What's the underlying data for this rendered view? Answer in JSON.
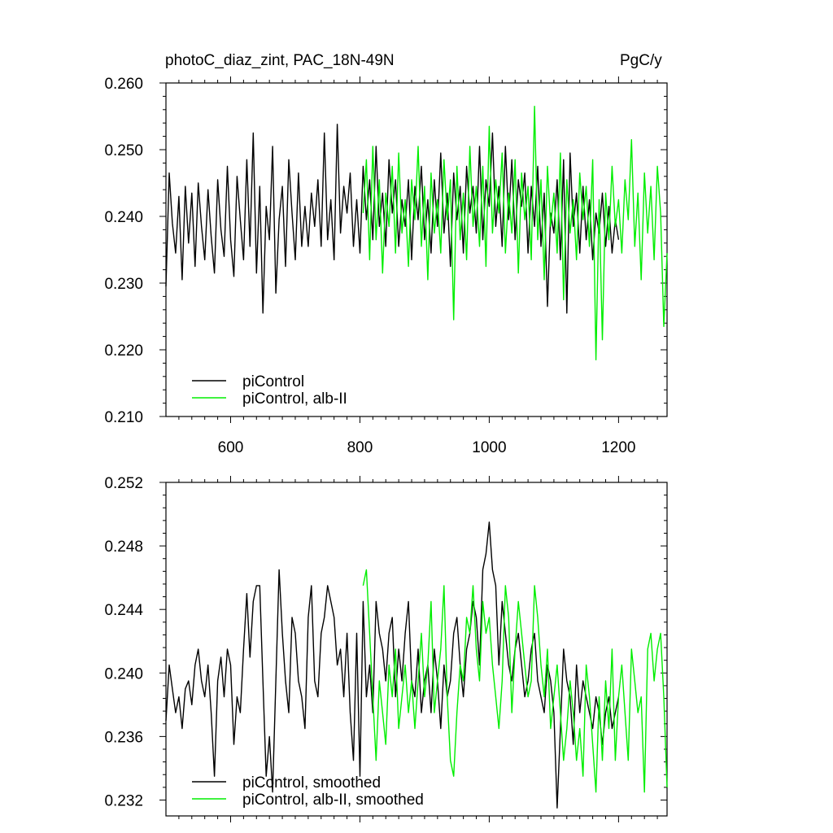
{
  "figure": {
    "title_left": "photoC_diaz_zint, PAC_18N-49N",
    "title_right": "PgC/y"
  },
  "chart_data": [
    {
      "type": "line",
      "xlim": [
        500,
        1275
      ],
      "ylim": [
        0.21,
        0.26
      ],
      "x_ticks": [
        600,
        800,
        1000,
        1200
      ],
      "x_tick_labels": [
        "600",
        "800",
        "1000",
        "1200"
      ],
      "y_ticks": [
        0.21,
        0.22,
        0.23,
        0.24,
        0.25,
        0.26
      ],
      "y_tick_labels": [
        "0.210",
        "0.220",
        "0.230",
        "0.240",
        "0.250",
        "0.260"
      ],
      "grid": false,
      "legend_position": "bottom-left",
      "series": [
        {
          "name": "piControl",
          "color": "#000000",
          "x": [
            500,
            505,
            510,
            515,
            520,
            525,
            530,
            535,
            540,
            545,
            550,
            555,
            560,
            565,
            570,
            575,
            580,
            585,
            590,
            595,
            600,
            605,
            610,
            615,
            620,
            625,
            630,
            635,
            640,
            645,
            650,
            655,
            660,
            665,
            670,
            675,
            680,
            685,
            690,
            695,
            700,
            705,
            710,
            715,
            720,
            725,
            730,
            735,
            740,
            745,
            750,
            755,
            760,
            765,
            770,
            775,
            780,
            785,
            790,
            795,
            800,
            805,
            810,
            815,
            820,
            825,
            830,
            835,
            840,
            845,
            850,
            855,
            860,
            865,
            870,
            875,
            880,
            885,
            890,
            895,
            900,
            905,
            910,
            915,
            920,
            925,
            930,
            935,
            940,
            945,
            950,
            955,
            960,
            965,
            970,
            975,
            980,
            985,
            990,
            995,
            1000,
            1005,
            1010,
            1015,
            1020,
            1025,
            1030,
            1035,
            1040,
            1045,
            1050,
            1055,
            1060,
            1065,
            1070,
            1075,
            1080,
            1085,
            1090,
            1095,
            1100,
            1105,
            1110,
            1115,
            1120,
            1125,
            1130,
            1135,
            1140,
            1145,
            1150,
            1155,
            1160,
            1165,
            1170,
            1175,
            1180,
            1185,
            1190,
            1195,
            1200
          ],
          "values": [
            0.2295,
            0.2465,
            0.239,
            0.2345,
            0.243,
            0.2305,
            0.2445,
            0.236,
            0.2435,
            0.2325,
            0.245,
            0.2385,
            0.2335,
            0.244,
            0.237,
            0.2315,
            0.2455,
            0.238,
            0.234,
            0.2475,
            0.2365,
            0.231,
            0.246,
            0.2395,
            0.2335,
            0.2485,
            0.2355,
            0.2525,
            0.2315,
            0.2445,
            0.2255,
            0.2415,
            0.2365,
            0.2505,
            0.2285,
            0.2395,
            0.2445,
            0.2325,
            0.2485,
            0.2405,
            0.2335,
            0.2465,
            0.2355,
            0.2415,
            0.2355,
            0.2435,
            0.2385,
            0.2455,
            0.2355,
            0.2525,
            0.2365,
            0.2425,
            0.2335,
            0.2538,
            0.2375,
            0.2445,
            0.2405,
            0.2465,
            0.2355,
            0.2425,
            0.2345,
            0.2475,
            0.2395,
            0.2455,
            0.2365,
            0.2505,
            0.2385,
            0.2435,
            0.2355,
            0.2485,
            0.2405,
            0.2455,
            0.2355,
            0.2425,
            0.2385,
            0.2455,
            0.2335,
            0.2445,
            0.2395,
            0.2475,
            0.2365,
            0.2425,
            0.2345,
            0.2455,
            0.2385,
            0.2495,
            0.2375,
            0.2435,
            0.2325,
            0.2465,
            0.2395,
            0.2445,
            0.2345,
            0.2475,
            0.2405,
            0.2445,
            0.2375,
            0.2505,
            0.2365,
            0.2455,
            0.2415,
            0.2525,
            0.2385,
            0.2445,
            0.2355,
            0.2505,
            0.2395,
            0.2485,
            0.2365,
            0.2455,
            0.2415,
            0.2465,
            0.2345,
            0.2445,
            0.2385,
            0.2475,
            0.2355,
            0.2435,
            0.2265,
            0.2405,
            0.2375,
            0.2455,
            0.2335,
            0.2485,
            0.2255,
            0.2495,
            0.2385,
            0.2435,
            0.2345,
            0.2445,
            0.2365,
            0.2425,
            0.2335,
            0.2405,
            0.2375,
            0.2435,
            0.2355,
            0.2415,
            0.2345,
            0.2395,
            0.2365
          ]
        },
        {
          "name": "piControl, alb-II",
          "color": "#00ee00",
          "x": [
            805,
            810,
            815,
            820,
            825,
            830,
            835,
            840,
            845,
            850,
            855,
            860,
            865,
            870,
            875,
            880,
            885,
            890,
            895,
            900,
            905,
            910,
            915,
            920,
            925,
            930,
            935,
            940,
            945,
            950,
            955,
            960,
            965,
            970,
            975,
            980,
            985,
            990,
            995,
            1000,
            1005,
            1010,
            1015,
            1020,
            1025,
            1030,
            1035,
            1040,
            1045,
            1050,
            1055,
            1060,
            1065,
            1070,
            1075,
            1080,
            1085,
            1090,
            1095,
            1100,
            1105,
            1110,
            1115,
            1120,
            1125,
            1130,
            1135,
            1140,
            1145,
            1150,
            1155,
            1160,
            1165,
            1170,
            1175,
            1180,
            1185,
            1190,
            1195,
            1200,
            1205,
            1210,
            1215,
            1220,
            1225,
            1230,
            1235,
            1240,
            1245,
            1250,
            1255,
            1260,
            1265,
            1270,
            1275
          ],
          "values": [
            0.2405,
            0.2485,
            0.2335,
            0.2505,
            0.2365,
            0.2455,
            0.2315,
            0.2435,
            0.2385,
            0.2475,
            0.2345,
            0.2495,
            0.2375,
            0.2425,
            0.2325,
            0.2455,
            0.2395,
            0.2505,
            0.2355,
            0.2445,
            0.2305,
            0.2465,
            0.2375,
            0.2425,
            0.2345,
            0.2485,
            0.2395,
            0.2455,
            0.2245,
            0.2475,
            0.2365,
            0.2435,
            0.2335,
            0.2505,
            0.2385,
            0.2445,
            0.2355,
            0.2475,
            0.2325,
            0.2535,
            0.2375,
            0.2455,
            0.2405,
            0.2495,
            0.2345,
            0.2435,
            0.2375,
            0.2485,
            0.2315,
            0.2465,
            0.2395,
            0.2445,
            0.2335,
            0.2565,
            0.2365,
            0.2455,
            0.2305,
            0.2475,
            0.2385,
            0.2435,
            0.2345,
            0.2495,
            0.2275,
            0.2455,
            0.2375,
            0.2425,
            0.2335,
            0.2465,
            0.2395,
            0.2445,
            0.2355,
            0.2485,
            0.2185,
            0.2425,
            0.2215,
            0.2435,
            0.2365,
            0.2475,
            0.2385,
            0.2425,
            0.2345,
            0.2455,
            0.2395,
            0.2515,
            0.2355,
            0.2435,
            0.2305,
            0.2465,
            0.2375,
            0.2445,
            0.2335,
            0.2475,
            0.2405,
            0.2235,
            0.2345
          ]
        }
      ]
    },
    {
      "type": "line",
      "xlim": [
        500,
        1275
      ],
      "ylim": [
        0.231,
        0.252
      ],
      "x_ticks": [
        600,
        800,
        1000,
        1200
      ],
      "y_ticks": [
        0.232,
        0.236,
        0.24,
        0.244,
        0.248,
        0.252
      ],
      "y_tick_labels": [
        "0.232",
        "0.236",
        "0.240",
        "0.244",
        "0.248",
        "0.252"
      ],
      "grid": false,
      "legend_position": "bottom-left",
      "series": [
        {
          "name": "piControl, smoothed",
          "color": "#000000",
          "x": [
            500,
            505,
            510,
            515,
            520,
            525,
            530,
            535,
            540,
            545,
            550,
            555,
            560,
            565,
            570,
            575,
            580,
            585,
            590,
            595,
            600,
            605,
            610,
            615,
            620,
            625,
            630,
            635,
            640,
            645,
            650,
            655,
            660,
            665,
            670,
            675,
            680,
            685,
            690,
            695,
            700,
            705,
            710,
            715,
            720,
            725,
            730,
            735,
            740,
            745,
            750,
            755,
            760,
            765,
            770,
            775,
            780,
            785,
            790,
            795,
            800,
            805,
            810,
            815,
            820,
            825,
            830,
            835,
            840,
            845,
            850,
            855,
            860,
            865,
            870,
            875,
            880,
            885,
            890,
            895,
            900,
            905,
            910,
            915,
            920,
            925,
            930,
            935,
            940,
            945,
            950,
            955,
            960,
            965,
            970,
            975,
            980,
            985,
            990,
            995,
            1000,
            1005,
            1010,
            1015,
            1020,
            1025,
            1030,
            1035,
            1040,
            1045,
            1050,
            1055,
            1060,
            1065,
            1070,
            1075,
            1080,
            1085,
            1090,
            1095,
            1100,
            1105,
            1110,
            1115,
            1120,
            1125,
            1130,
            1135,
            1140,
            1145,
            1150,
            1155,
            1160,
            1165,
            1170,
            1175,
            1180,
            1185,
            1190,
            1195,
            1200
          ],
          "values": [
            0.237,
            0.2405,
            0.239,
            0.2375,
            0.2385,
            0.2365,
            0.239,
            0.2395,
            0.238,
            0.2405,
            0.2415,
            0.2395,
            0.2385,
            0.2405,
            0.2375,
            0.2335,
            0.2395,
            0.241,
            0.2385,
            0.2415,
            0.2405,
            0.2355,
            0.2385,
            0.2375,
            0.2415,
            0.245,
            0.241,
            0.2445,
            0.2455,
            0.2455,
            0.2395,
            0.2335,
            0.236,
            0.2325,
            0.2395,
            0.2465,
            0.2425,
            0.2395,
            0.2375,
            0.2435,
            0.2425,
            0.2395,
            0.2385,
            0.2365,
            0.2435,
            0.2455,
            0.2395,
            0.2385,
            0.2425,
            0.2435,
            0.2455,
            0.2445,
            0.2435,
            0.2405,
            0.2415,
            0.2385,
            0.2425,
            0.2375,
            0.2345,
            0.2425,
            0.2335,
            0.2445,
            0.2385,
            0.2405,
            0.2375,
            0.2445,
            0.2425,
            0.2415,
            0.2395,
            0.2425,
            0.2435,
            0.2385,
            0.2415,
            0.2395,
            0.2425,
            0.2445,
            0.2395,
            0.2385,
            0.2415,
            0.2375,
            0.2395,
            0.2405,
            0.2375,
            0.2415,
            0.2395,
            0.2365,
            0.2405,
            0.2385,
            0.2395,
            0.2425,
            0.2435,
            0.2405,
            0.2385,
            0.2415,
            0.2425,
            0.2445,
            0.2435,
            0.2405,
            0.2465,
            0.2475,
            0.2495,
            0.2465,
            0.2455,
            0.2405,
            0.2445,
            0.2425,
            0.2405,
            0.2395,
            0.2415,
            0.2425,
            0.2405,
            0.2385,
            0.2395,
            0.2415,
            0.2425,
            0.2395,
            0.2385,
            0.2375,
            0.2405,
            0.2395,
            0.2375,
            0.2315,
            0.2365,
            0.2415,
            0.2395,
            0.2385,
            0.2355,
            0.2405,
            0.2375,
            0.2395,
            0.2385,
            0.2375,
            0.2365,
            0.2385,
            0.2375,
            0.2355,
            0.2375,
            0.2385,
            0.2365,
            0.2375,
            0.2385
          ]
        },
        {
          "name": "piControl, alb-II, smoothed",
          "color": "#00ee00",
          "x": [
            805,
            810,
            815,
            820,
            825,
            830,
            835,
            840,
            845,
            850,
            855,
            860,
            865,
            870,
            875,
            880,
            885,
            890,
            895,
            900,
            905,
            910,
            915,
            920,
            925,
            930,
            935,
            940,
            945,
            950,
            955,
            960,
            965,
            970,
            975,
            980,
            985,
            990,
            995,
            1000,
            1005,
            1010,
            1015,
            1020,
            1025,
            1030,
            1035,
            1040,
            1045,
            1050,
            1055,
            1060,
            1065,
            1070,
            1075,
            1080,
            1085,
            1090,
            1095,
            1100,
            1105,
            1110,
            1115,
            1120,
            1125,
            1130,
            1135,
            1140,
            1145,
            1150,
            1155,
            1160,
            1165,
            1170,
            1175,
            1180,
            1185,
            1190,
            1195,
            1200,
            1205,
            1210,
            1215,
            1220,
            1225,
            1230,
            1235,
            1240,
            1245,
            1250,
            1255,
            1260,
            1265,
            1270,
            1275
          ],
          "values": [
            0.2455,
            0.2465,
            0.2425,
            0.2385,
            0.2345,
            0.2395,
            0.2375,
            0.2355,
            0.2405,
            0.2385,
            0.2415,
            0.2365,
            0.2385,
            0.2405,
            0.2375,
            0.2395,
            0.2365,
            0.2395,
            0.2425,
            0.2385,
            0.2405,
            0.2445,
            0.2375,
            0.2395,
            0.2415,
            0.2455,
            0.2385,
            0.2345,
            0.2335,
            0.2375,
            0.2405,
            0.2395,
            0.2435,
            0.2425,
            0.2455,
            0.2415,
            0.2395,
            0.2445,
            0.2425,
            0.2435,
            0.2405,
            0.2385,
            0.2365,
            0.2395,
            0.2455,
            0.2435,
            0.2375,
            0.2415,
            0.2445,
            0.2425,
            0.2405,
            0.2385,
            0.2395,
            0.2455,
            0.2435,
            0.2405,
            0.2385,
            0.2415,
            0.2365,
            0.2385,
            0.2405,
            0.2375,
            0.2345,
            0.2365,
            0.2395,
            0.2375,
            0.2345,
            0.2365,
            0.2335,
            0.2405,
            0.2385,
            0.2355,
            0.2325,
            0.2385,
            0.2345,
            0.2395,
            0.2365,
            0.2415,
            0.2345,
            0.2385,
            0.2405,
            0.2375,
            0.2345,
            0.2415,
            0.2395,
            0.2375,
            0.2385,
            0.2325,
            0.2415,
            0.2425,
            0.2395,
            0.2415,
            0.2425,
            0.2385,
            0.2328
          ]
        }
      ]
    }
  ]
}
